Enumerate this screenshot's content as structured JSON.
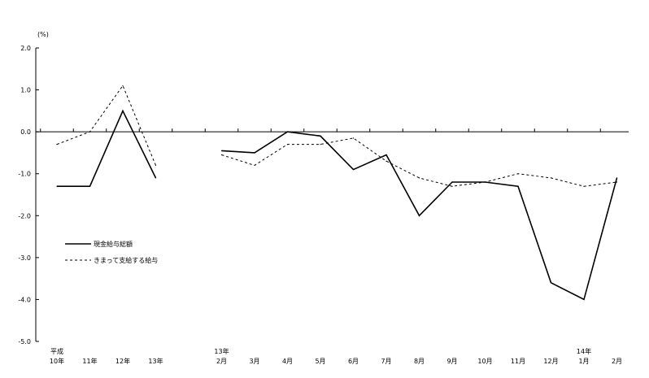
{
  "chart_data": {
    "type": "line",
    "unit_label": "(%)",
    "ylim": [
      -5.0,
      2.0
    ],
    "y_ticks": [
      "2.0",
      "1.0",
      "0.0",
      "-1.0",
      "-2.0",
      "-3.0",
      "-4.0",
      "-5.0"
    ],
    "categories": [
      {
        "top": "平成",
        "bottom": "10年"
      },
      {
        "top": "",
        "bottom": "11年"
      },
      {
        "top": "",
        "bottom": "12年"
      },
      {
        "top": "",
        "bottom": "13年"
      },
      {
        "top": "",
        "bottom": ""
      },
      {
        "top": "13年",
        "bottom": "2月"
      },
      {
        "top": "",
        "bottom": "3月"
      },
      {
        "top": "",
        "bottom": "4月"
      },
      {
        "top": "",
        "bottom": "5月"
      },
      {
        "top": "",
        "bottom": "6月"
      },
      {
        "top": "",
        "bottom": "7月"
      },
      {
        "top": "",
        "bottom": "8月"
      },
      {
        "top": "",
        "bottom": "9月"
      },
      {
        "top": "",
        "bottom": "10月"
      },
      {
        "top": "",
        "bottom": "11月"
      },
      {
        "top": "",
        "bottom": "12月"
      },
      {
        "top": "14年",
        "bottom": "1月"
      },
      {
        "top": "",
        "bottom": "2月"
      }
    ],
    "series": [
      {
        "name": "現金給与総額",
        "style": "solid",
        "values": [
          -1.3,
          -1.3,
          0.5,
          -1.1,
          null,
          -0.45,
          -0.5,
          0.0,
          -0.1,
          -0.9,
          -0.55,
          -2.0,
          -1.2,
          -1.2,
          -1.3,
          -3.6,
          -4.0,
          -1.1
        ]
      },
      {
        "name": "きまって支給する給与",
        "style": "dashed",
        "values": [
          -0.3,
          0.0,
          1.1,
          -0.8,
          null,
          -0.55,
          -0.8,
          -0.3,
          -0.3,
          -0.15,
          -0.7,
          -1.1,
          -1.3,
          -1.2,
          -1.0,
          -1.1,
          -1.3,
          -1.2
        ]
      }
    ],
    "grid": false,
    "legend_position": "left-lower"
  }
}
